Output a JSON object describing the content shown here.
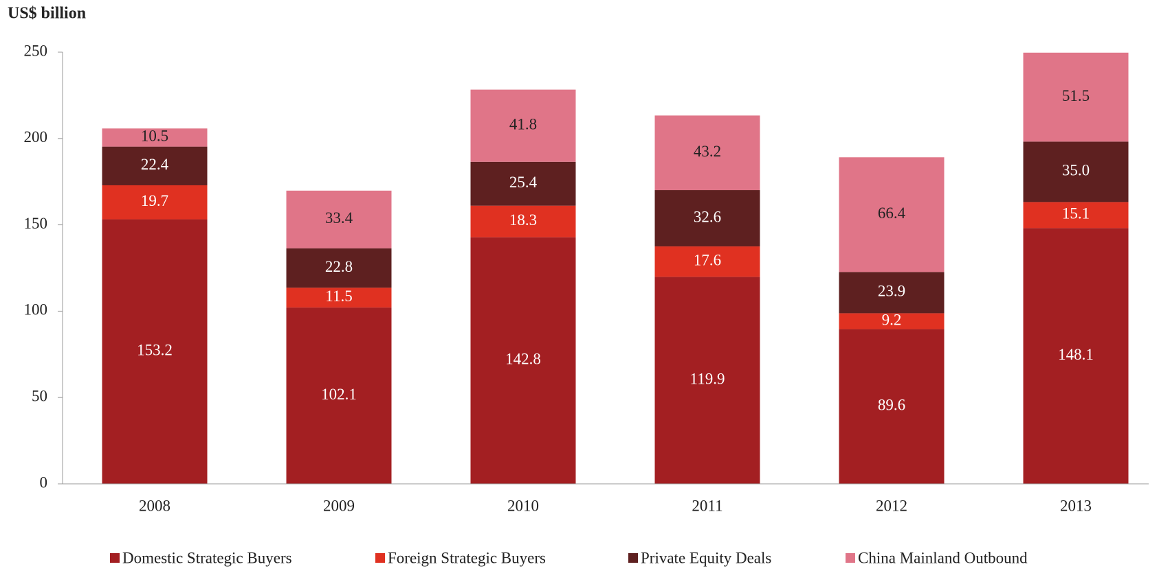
{
  "chart_data": {
    "type": "stacked_bar",
    "ylabel": "US$ billion",
    "categories": [
      "2008",
      "2009",
      "2010",
      "2011",
      "2012",
      "2013"
    ],
    "series": [
      {
        "name": "Domestic Strategic Buyers",
        "color": "#a31f22",
        "values": [
          153.2,
          102.1,
          142.8,
          119.9,
          89.6,
          148.1
        ],
        "value_labels": [
          "153.2",
          "102.1",
          "142.8",
          "119.9",
          "89.6",
          "148.1"
        ]
      },
      {
        "name": "Foreign Strategic Buyers",
        "color": "#e03121",
        "values": [
          19.7,
          11.5,
          18.3,
          17.6,
          9.2,
          15.1
        ],
        "value_labels": [
          "19.7",
          "11.5",
          "18.3",
          "17.6",
          "9.2",
          "15.1"
        ]
      },
      {
        "name": "Private Equity Deals",
        "color": "#5e2020",
        "values": [
          22.4,
          22.8,
          25.4,
          32.6,
          23.9,
          35.0
        ],
        "value_labels": [
          "22.4",
          "22.8",
          "25.4",
          "32.6",
          "23.9",
          "35.0"
        ]
      },
      {
        "name": "China Mainland Outbound",
        "color": "#e07588",
        "values": [
          10.5,
          33.4,
          41.8,
          43.2,
          66.4,
          51.5
        ],
        "value_labels": [
          "10.5",
          "33.4",
          "41.8",
          "43.2",
          "66.4",
          "51.5"
        ]
      }
    ],
    "ylim": [
      0,
      250
    ],
    "yticks": [
      0,
      50,
      100,
      150,
      200,
      250
    ],
    "grid": false,
    "legend": "bottom"
  }
}
